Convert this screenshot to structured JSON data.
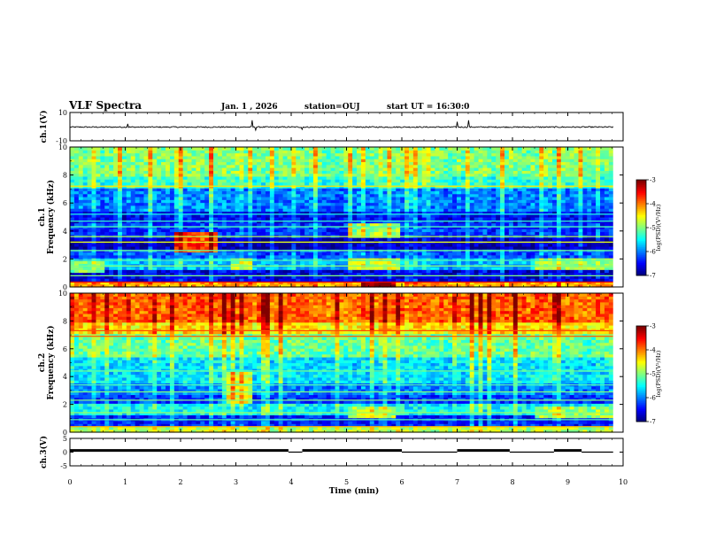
{
  "header": {
    "title": "VLF Spectra",
    "date": "Jan. 1 , 2026",
    "station": "station=OUJ",
    "start_ut": "start UT = 16:30:0"
  },
  "chart_data": [
    {
      "id": "ch1-voltage",
      "type": "line",
      "ylabel": "ch.1(V)",
      "ylim": [
        -10,
        10
      ],
      "y_ticks": [
        "10",
        "-10"
      ],
      "xlim": [
        0,
        10
      ],
      "baseline": -0.3,
      "noise_amplitude": 0.4,
      "spikes": [
        {
          "x": 1.05,
          "y": 2.0
        },
        {
          "x": 3.3,
          "y": 4.5
        },
        {
          "x": 3.35,
          "y": -2.5
        },
        {
          "x": 4.2,
          "y": -2.0
        },
        {
          "x": 7.0,
          "y": 3.5
        },
        {
          "x": 7.2,
          "y": 4.5
        }
      ]
    },
    {
      "id": "ch1-spectrogram",
      "type": "heatmap",
      "ylabel": "ch.1",
      "ylabel2": "Frequency (kHz)",
      "xlim": [
        0,
        10
      ],
      "ylim": [
        0,
        10
      ],
      "y_ticks": [
        "0",
        "2",
        "4",
        "6",
        "8",
        "10"
      ],
      "data_end_min": 9.82,
      "colorbar": {
        "label": "log(PSD)(V²/Hz)",
        "range": [
          -7,
          -3
        ],
        "ticks": [
          "-3",
          "-4",
          "-5",
          "-6",
          "-7"
        ]
      },
      "bands_log_psd": [
        {
          "f": [
            0,
            0.5
          ],
          "v": -4.2
        },
        {
          "f": [
            0.5,
            1.2
          ],
          "v": -6.6
        },
        {
          "f": [
            1.2,
            2.0
          ],
          "v": -5.8
        },
        {
          "f": [
            2.0,
            2.8
          ],
          "v": -6.2
        },
        {
          "f": [
            2.8,
            3.6
          ],
          "v": -6.8
        },
        {
          "f": [
            3.6,
            4.5
          ],
          "v": -6.3
        },
        {
          "f": [
            4.5,
            5.5
          ],
          "v": -6.5
        },
        {
          "f": [
            5.5,
            7.0
          ],
          "v": -6.0
        },
        {
          "f": [
            7.0,
            8.0
          ],
          "v": -5.3
        },
        {
          "f": [
            8.0,
            10.0
          ],
          "v": -5.0
        }
      ],
      "lines_log_psd": [
        {
          "f": 0.35,
          "v": -3.4
        },
        {
          "f": 0.8,
          "v": -5.0
        },
        {
          "f": 1.5,
          "v": -5.0
        },
        {
          "f": 1.9,
          "v": -5.2
        },
        {
          "f": 2.6,
          "v": -5.1
        },
        {
          "f": 3.2,
          "v": -4.6
        },
        {
          "f": 3.6,
          "v": -4.8
        },
        {
          "f": 4.3,
          "v": -5.2
        },
        {
          "f": 4.7,
          "v": -5.3
        },
        {
          "f": 5.2,
          "v": -5.4
        },
        {
          "f": 7.2,
          "v": -4.4
        }
      ],
      "events": [
        {
          "t": [
            1.9,
            2.7
          ],
          "f": [
            2.4,
            4.0
          ],
          "v": -3.8
        },
        {
          "t": [
            2.9,
            3.3
          ],
          "f": [
            1.2,
            2.0
          ],
          "v": -4.9
        },
        {
          "t": [
            5.0,
            6.0
          ],
          "f": [
            1.3,
            2.0
          ],
          "v": -4.8
        },
        {
          "t": [
            5.0,
            6.0
          ],
          "f": [
            3.6,
            4.6
          ],
          "v": -4.9
        },
        {
          "t": [
            8.4,
            9.8
          ],
          "f": [
            1.2,
            2.0
          ],
          "v": -4.9
        },
        {
          "t": [
            0.0,
            0.6
          ],
          "f": [
            1.0,
            1.8
          ],
          "v": -5.0
        },
        {
          "t": [
            5.3,
            5.9
          ],
          "f": [
            0.1,
            0.5
          ],
          "v": -3.1
        }
      ]
    },
    {
      "id": "ch2-spectrogram",
      "type": "heatmap",
      "ylabel": "ch.2",
      "ylabel2": "Frequency (kHz)",
      "xlim": [
        0,
        10
      ],
      "ylim": [
        0,
        10
      ],
      "y_ticks": [
        "0",
        "2",
        "4",
        "6",
        "8",
        "10"
      ],
      "data_end_min": 9.82,
      "colorbar": {
        "label": "log(PSD)(V²/Hz)",
        "range": [
          -7,
          -3
        ],
        "ticks": [
          "-3",
          "-4",
          "-5",
          "-6",
          "-7"
        ]
      },
      "bands_log_psd": [
        {
          "f": [
            0,
            0.5
          ],
          "v": -4.8
        },
        {
          "f": [
            0.5,
            1.2
          ],
          "v": -6.4
        },
        {
          "f": [
            1.2,
            2.0
          ],
          "v": -5.5
        },
        {
          "f": [
            2.0,
            2.8
          ],
          "v": -6.3
        },
        {
          "f": [
            2.8,
            3.6
          ],
          "v": -6.0
        },
        {
          "f": [
            3.6,
            4.5
          ],
          "v": -5.6
        },
        {
          "f": [
            4.5,
            5.5
          ],
          "v": -5.6
        },
        {
          "f": [
            5.5,
            7.0
          ],
          "v": -5.1
        },
        {
          "f": [
            7.0,
            8.0
          ],
          "v": -4.4
        },
        {
          "f": [
            8.0,
            10.0
          ],
          "v": -3.9
        }
      ],
      "lines_log_psd": [
        {
          "f": 0.4,
          "v": -4.2
        },
        {
          "f": 0.9,
          "v": -5.2
        },
        {
          "f": 1.4,
          "v": -4.9
        },
        {
          "f": 2.3,
          "v": -5.0
        },
        {
          "f": 2.9,
          "v": -5.0
        },
        {
          "f": 3.4,
          "v": -5.2
        },
        {
          "f": 4.4,
          "v": -5.1
        },
        {
          "f": 6.9,
          "v": -3.9
        },
        {
          "f": 7.3,
          "v": -3.8
        }
      ],
      "events": [
        {
          "t": [
            2.8,
            3.3
          ],
          "f": [
            2.0,
            4.4
          ],
          "v": -4.6
        },
        {
          "t": [
            5.0,
            5.9
          ],
          "f": [
            1.0,
            1.8
          ],
          "v": -4.8
        },
        {
          "t": [
            8.4,
            9.8
          ],
          "f": [
            1.0,
            1.8
          ],
          "v": -4.9
        }
      ]
    },
    {
      "id": "ch3-voltage",
      "type": "line",
      "ylabel": "ch.3(V)",
      "ylim": [
        -5,
        5
      ],
      "y_ticks": [
        "5",
        "0",
        "-5"
      ],
      "xlim": [
        0,
        10
      ],
      "xlabel": "Time (min)",
      "x_ticks": [
        "0",
        "1",
        "2",
        "3",
        "4",
        "5",
        "6",
        "7",
        "8",
        "9",
        "10"
      ],
      "steps": [
        {
          "t": [
            0.0,
            3.95
          ],
          "v": 0.6
        },
        {
          "t": [
            3.95,
            4.2
          ],
          "v": 0.0
        },
        {
          "t": [
            4.2,
            6.0
          ],
          "v": 0.6
        },
        {
          "t": [
            6.0,
            7.0
          ],
          "v": 0.0
        },
        {
          "t": [
            7.0,
            7.95
          ],
          "v": 0.6
        },
        {
          "t": [
            7.95,
            8.75
          ],
          "v": 0.0
        },
        {
          "t": [
            8.75,
            9.25
          ],
          "v": 0.6
        },
        {
          "t": [
            9.25,
            9.82
          ],
          "v": 0.0
        }
      ]
    }
  ]
}
